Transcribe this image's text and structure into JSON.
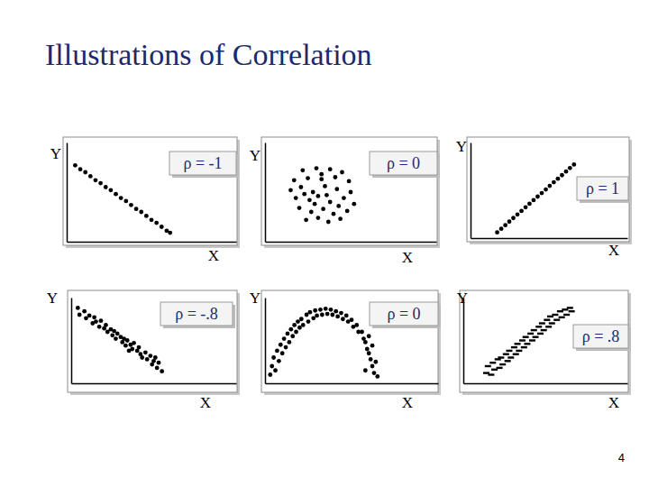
{
  "title": "Illustrations of Correlation",
  "page_number": 4,
  "chart_data": [
    {
      "type": "scatter",
      "x_label": "X",
      "y_label": "Y",
      "annotation": "ρ = -1",
      "marker": "circle",
      "color": "#000000",
      "tick_labels": false,
      "xlim": [
        0,
        100
      ],
      "ylim": [
        0,
        100
      ],
      "xticks": [],
      "yticks": [],
      "x": [
        5,
        8,
        11,
        14,
        17,
        20,
        23,
        26,
        29,
        32,
        35,
        38,
        41,
        44,
        47,
        50,
        53,
        56,
        59,
        61
      ],
      "y": [
        77,
        73,
        70,
        66,
        62,
        59,
        55,
        52,
        48,
        44,
        41,
        37,
        33,
        30,
        26,
        22,
        19,
        15,
        11,
        9
      ]
    },
    {
      "type": "scatter",
      "x_label": "X",
      "y_label": "Y",
      "annotation": "ρ = 0",
      "marker": "circle",
      "color": "#000000",
      "tick_labels": false,
      "xlim": [
        0,
        100
      ],
      "ylim": [
        0,
        100
      ],
      "xticks": [],
      "yticks": [],
      "x": [
        22,
        30,
        38,
        45,
        17,
        25,
        33,
        41,
        49,
        15,
        21,
        28,
        35,
        42,
        50,
        18,
        26,
        31,
        38,
        46,
        52,
        20,
        27,
        34,
        40,
        48,
        24,
        31,
        37,
        44,
        29,
        36,
        23,
        43,
        33
      ],
      "y": [
        72,
        74,
        73,
        70,
        62,
        64,
        63,
        65,
        61,
        52,
        55,
        50,
        56,
        53,
        50,
        44,
        42,
        46,
        40,
        44,
        38,
        34,
        30,
        33,
        28,
        31,
        22,
        24,
        20,
        23,
        38,
        47,
        48,
        36,
        68
      ]
    },
    {
      "type": "scatter",
      "x_label": "X",
      "y_label": "Y",
      "annotation": "ρ = 1",
      "marker": "circle",
      "color": "#000000",
      "tick_labels": false,
      "xlim": [
        0,
        100
      ],
      "ylim": [
        0,
        100
      ],
      "xticks": [],
      "yticks": [],
      "x": [
        17,
        19.6,
        22.2,
        24.7,
        27.3,
        29.9,
        32.5,
        35.1,
        37.6,
        40.2,
        42.8,
        45.4,
        48,
        50.5,
        53.1,
        55.7,
        58.3,
        60.9,
        63.4,
        66
      ],
      "y": [
        6,
        9.7,
        13.5,
        17.2,
        21,
        24.7,
        28.4,
        32.2,
        35.9,
        39.7,
        43.4,
        47.1,
        50.9,
        54.6,
        58.4,
        62.1,
        65.8,
        69.6,
        73.3,
        77
      ]
    },
    {
      "type": "scatter",
      "x_label": "X",
      "y_label": "Y",
      "annotation": "ρ = -.8",
      "marker": "circle",
      "color": "#000000",
      "tick_labels": false,
      "xlim": [
        0,
        100
      ],
      "ylim": [
        0,
        100
      ],
      "xticks": [],
      "yticks": [],
      "x": [
        4,
        5,
        8,
        9,
        11,
        13,
        14,
        15,
        17,
        18,
        20,
        21,
        22,
        24,
        25,
        26,
        27,
        28,
        30,
        31,
        32,
        33,
        34,
        36,
        37,
        38,
        40,
        41,
        42,
        43,
        45,
        46,
        48,
        49,
        50,
        52,
        53,
        55,
        51,
        35
      ],
      "y": [
        88,
        80,
        84,
        76,
        79,
        70,
        77,
        72,
        66,
        73,
        64,
        68,
        60,
        63,
        56,
        61,
        52,
        58,
        54,
        48,
        52,
        44,
        50,
        45,
        40,
        47,
        38,
        42,
        34,
        30,
        36,
        28,
        32,
        22,
        26,
        18,
        24,
        14,
        30,
        38
      ]
    },
    {
      "type": "scatter",
      "x_label": "X",
      "y_label": "Y",
      "annotation": "ρ = 0",
      "marker": "circle",
      "color": "#000000",
      "tick_labels": false,
      "xlim": [
        0,
        100
      ],
      "ylim": [
        0,
        100
      ],
      "xticks": [],
      "yticks": [],
      "x": [
        3,
        4,
        5,
        6,
        7,
        8,
        9,
        10,
        11,
        12,
        13,
        14,
        15,
        16,
        17,
        18,
        19,
        20,
        21,
        22,
        24,
        25,
        26,
        28,
        29,
        30,
        32,
        33,
        35,
        36,
        38,
        39,
        41,
        42,
        44,
        45,
        47,
        48,
        50,
        51,
        53,
        54,
        56,
        57,
        58,
        59,
        60,
        61,
        62,
        63,
        64,
        65,
        62,
        58,
        60
      ],
      "y": [
        10,
        20,
        30,
        15,
        38,
        26,
        45,
        35,
        52,
        42,
        58,
        48,
        63,
        55,
        68,
        60,
        72,
        65,
        75,
        68,
        80,
        72,
        83,
        76,
        85,
        79,
        86,
        80,
        87,
        81,
        86,
        80,
        84,
        78,
        82,
        75,
        79,
        72,
        74,
        66,
        68,
        60,
        60,
        52,
        48,
        40,
        35,
        28,
        20,
        12,
        25,
        8,
        44,
        15,
        55
      ]
    },
    {
      "type": "scatter",
      "x_label": "X",
      "y_label": "Y",
      "annotation": "ρ = .8",
      "marker": "dash",
      "color": "#000000",
      "tick_labels": false,
      "xlim": [
        0,
        100
      ],
      "ylim": [
        0,
        100
      ],
      "xticks": [],
      "yticks": [],
      "x": [
        14,
        15,
        17,
        18,
        19,
        21,
        22,
        23,
        24,
        26,
        27,
        28,
        29,
        31,
        32,
        33,
        34,
        36,
        37,
        38,
        39,
        41,
        42,
        43,
        44,
        46,
        47,
        48,
        49,
        51,
        52,
        53,
        54,
        56,
        57,
        59,
        60,
        62,
        63,
        65,
        66
      ],
      "y": [
        12,
        20,
        10,
        24,
        16,
        28,
        18,
        30,
        22,
        34,
        26,
        38,
        30,
        42,
        34,
        46,
        38,
        50,
        42,
        54,
        46,
        58,
        50,
        62,
        54,
        66,
        58,
        70,
        62,
        74,
        66,
        78,
        70,
        80,
        74,
        84,
        77,
        86,
        80,
        88,
        84
      ]
    }
  ]
}
